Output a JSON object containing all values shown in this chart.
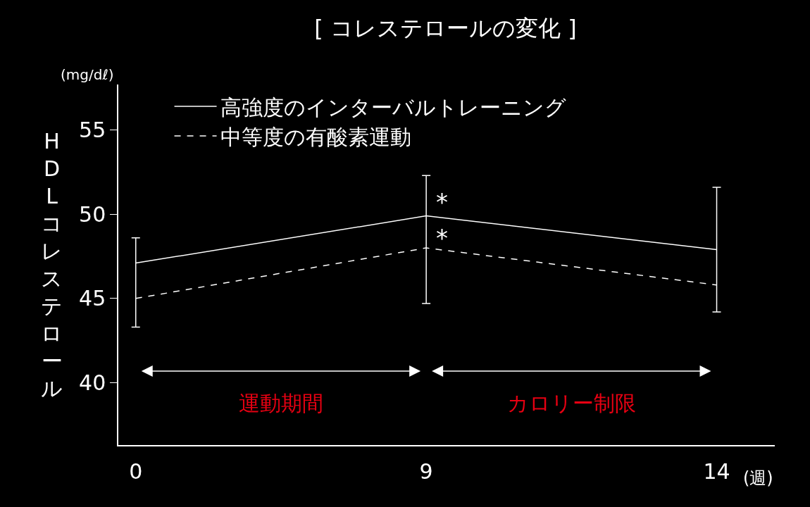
{
  "chart_data": {
    "type": "line",
    "title": "[ コレステロールの変化 ]",
    "ylabel": "HDLコレステロール",
    "xlabel": "(週)",
    "categories": [
      "0",
      "9",
      "14"
    ],
    "series": [
      {
        "name": "高強度のインターバルトレーニング",
        "color": "#ffffff",
        "values": [
          47.1,
          49.9,
          47.9
        ],
        "line_style": "solid",
        "errors": [
          [
            43.3,
            48.6
          ],
          [
            44.7,
            52.3
          ],
          [
            44.2,
            51.6
          ]
        ]
      },
      {
        "name": "中等度の有酸素運動",
        "color": "#ffffff",
        "values": [
          45.0,
          48.0,
          45.8
        ],
        "line_style": "dashed"
      }
    ],
    "ylim": [
      36.3,
      57.7
    ],
    "yticks": [
      40,
      45,
      50,
      55
    ],
    "annotations": [
      "(mg/dℓ)",
      {
        "text": "*",
        "x": "9",
        "y": 50.7
      },
      {
        "text": "*",
        "x": "9",
        "y": 48.6
      },
      "運動期間",
      "カロリー制限"
    ],
    "grid": false,
    "legend": "top left",
    "marker": "none"
  }
}
